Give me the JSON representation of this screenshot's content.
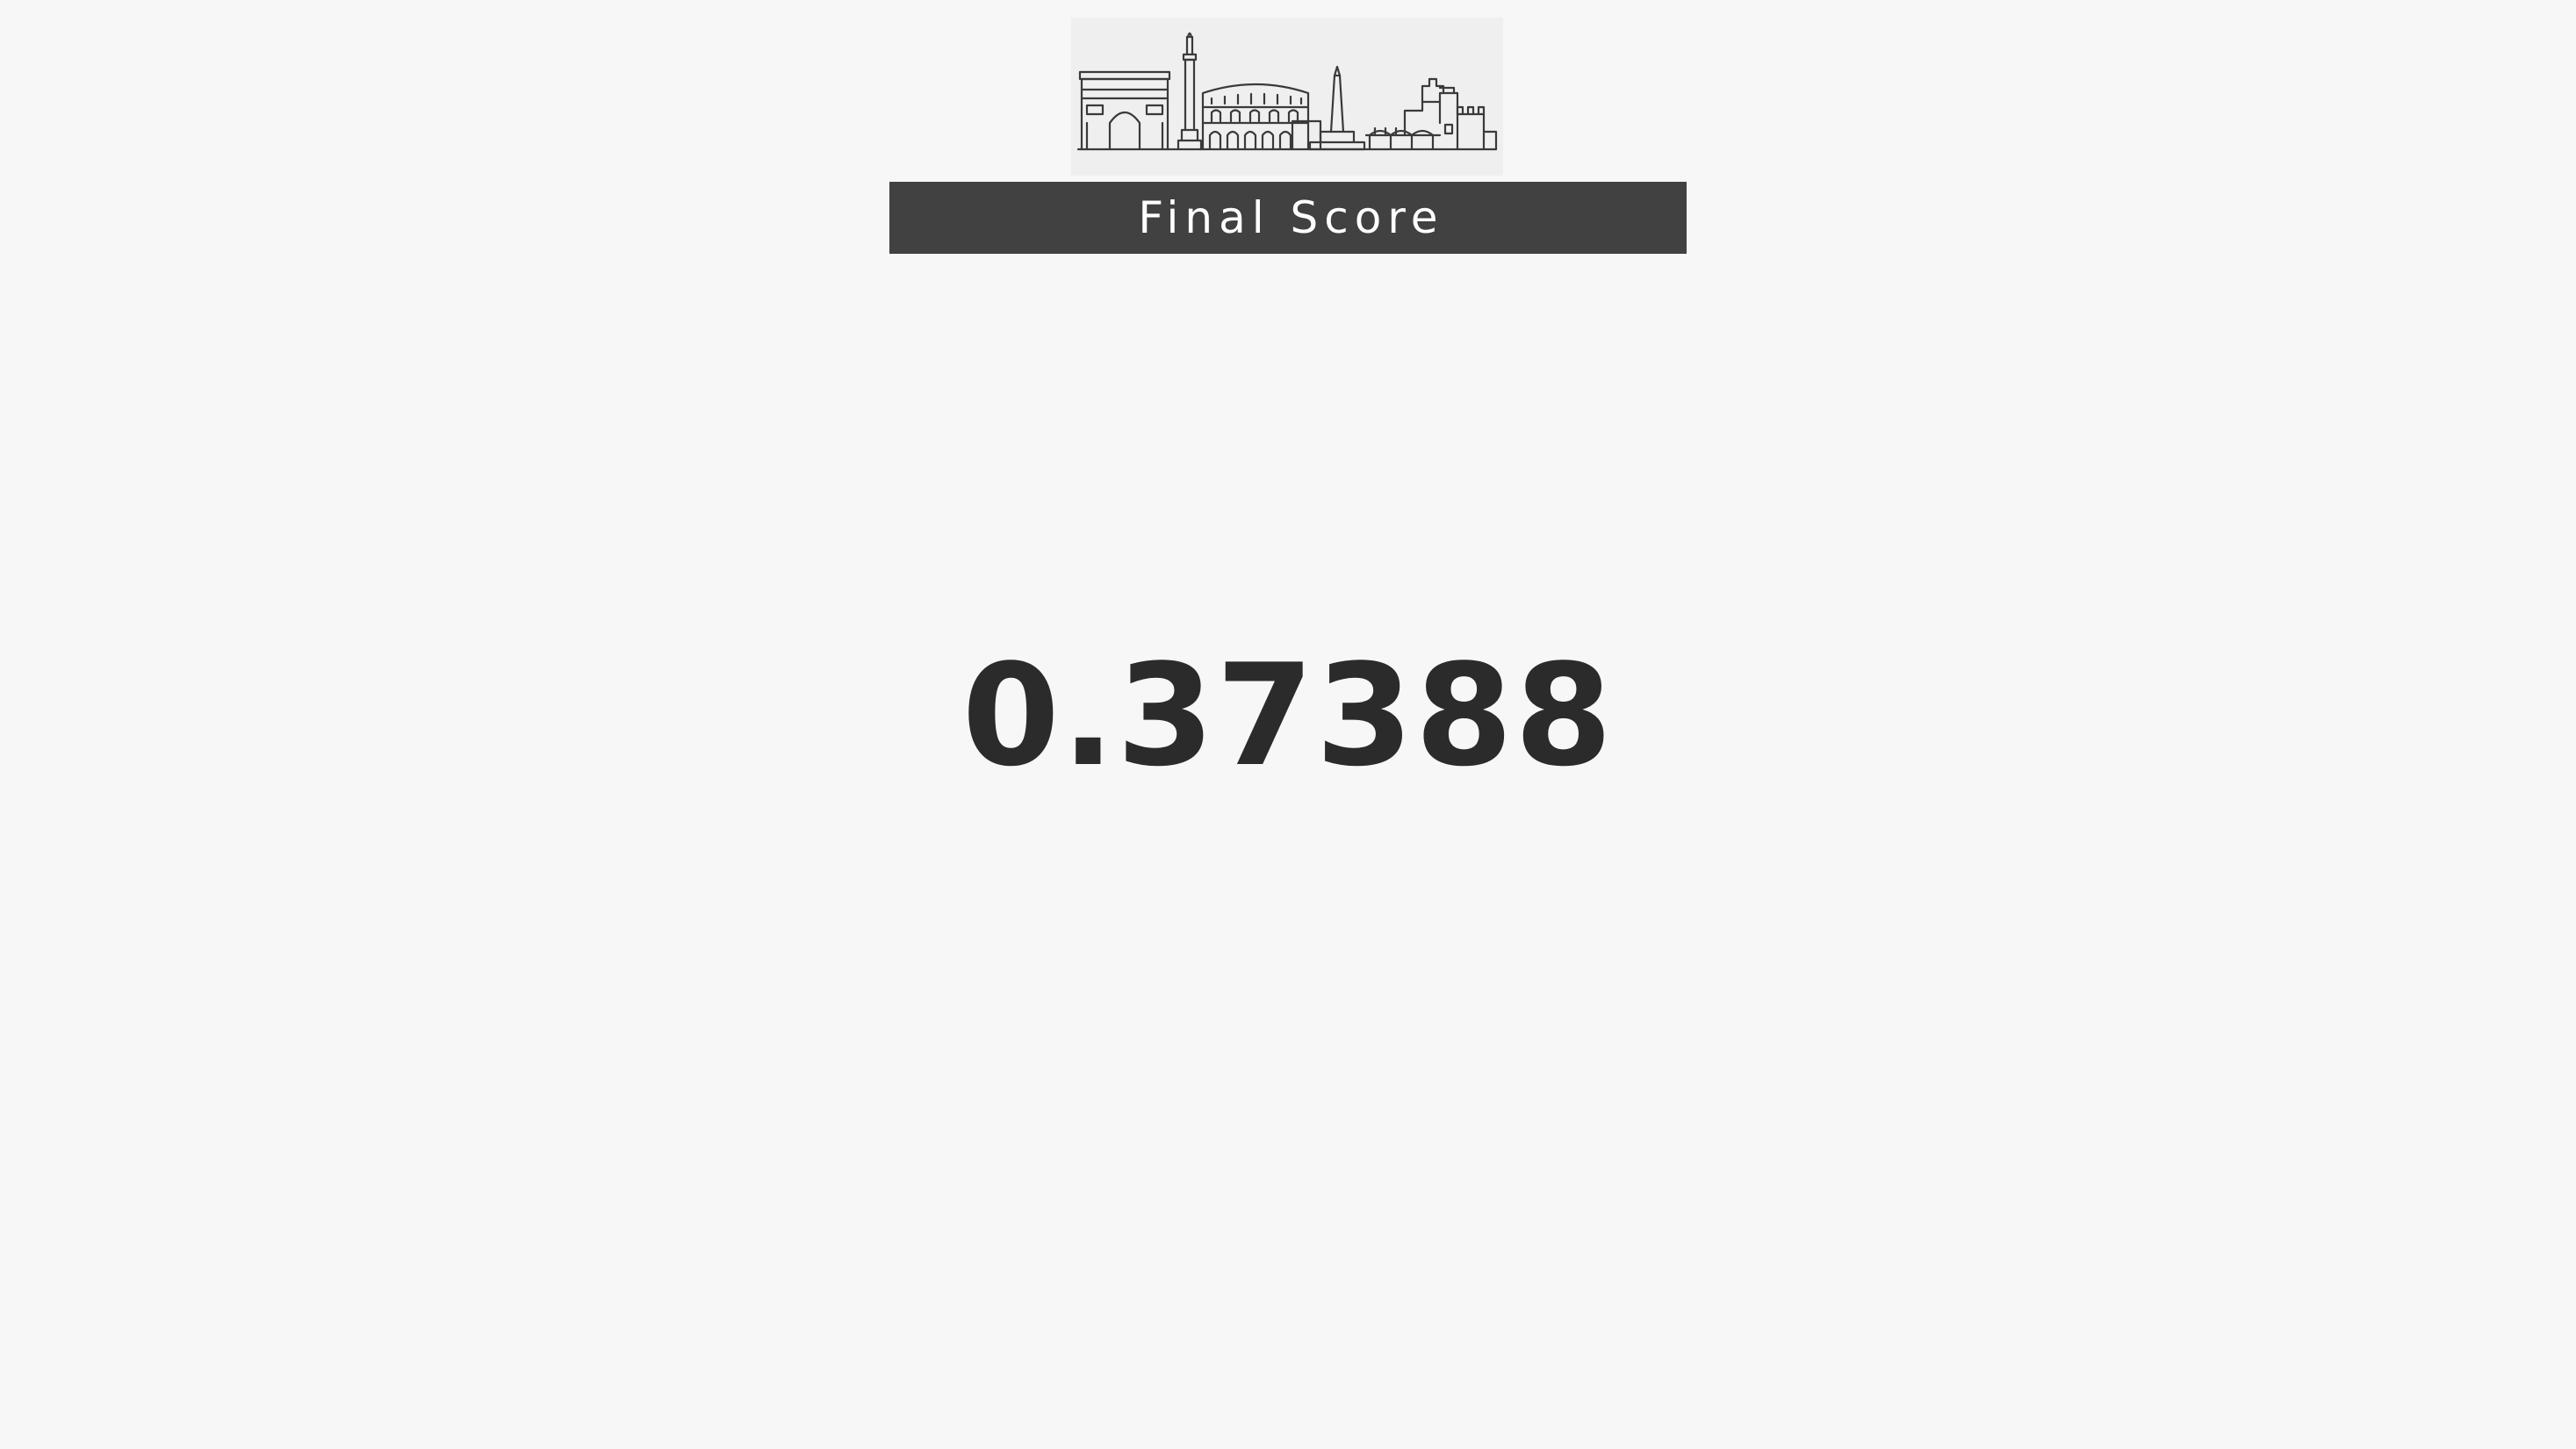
{
  "header": {
    "logo_icon": "city-skyline-icon",
    "title": "Final Score"
  },
  "result": {
    "score": "0.37388"
  },
  "colors": {
    "background": "#f7f7f7",
    "title_bar": "#414141",
    "title_text": "#ffffff",
    "score_text": "#2b2b2b"
  }
}
